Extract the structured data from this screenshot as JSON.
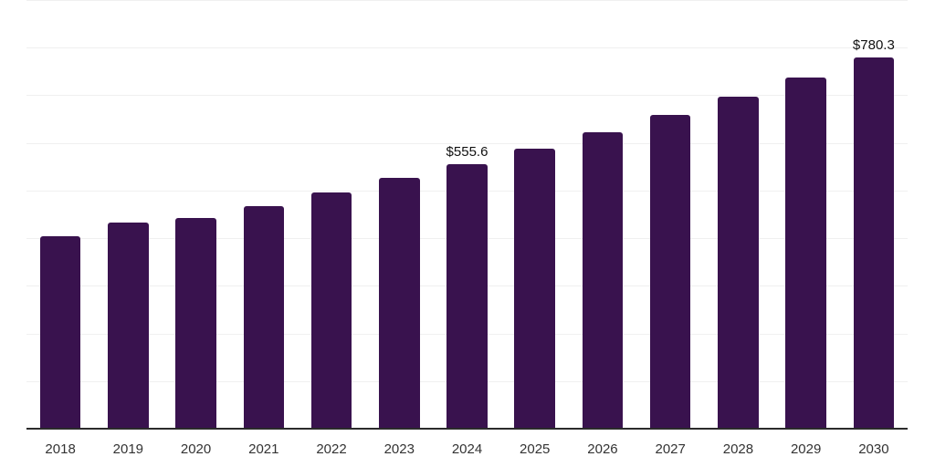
{
  "chart_data": {
    "type": "bar",
    "categories": [
      "2018",
      "2019",
      "2020",
      "2021",
      "2022",
      "2023",
      "2024",
      "2025",
      "2026",
      "2027",
      "2028",
      "2029",
      "2030"
    ],
    "values": [
      405.0,
      433.0,
      442.0,
      467.5,
      496.0,
      526.5,
      555.6,
      587.9,
      622.2,
      658.4,
      696.7,
      737.2,
      780.3
    ],
    "point_labels": [
      "",
      "",
      "",
      "",
      "",
      "",
      "$555.6",
      "",
      "",
      "",
      "",
      "",
      "$780.3"
    ],
    "title": "",
    "xlabel": "",
    "ylabel": "",
    "ylim": [
      0,
      900
    ],
    "gridline_step": 100,
    "grid": true,
    "legend": false,
    "y_tick_labels_visible": false,
    "colors": {
      "bar": "#39124E",
      "gridline": "#f0f0f0",
      "axis_line": "#2b2b2b",
      "tick_label": "#333333",
      "value_label": "#111111",
      "background": "#ffffff"
    }
  }
}
